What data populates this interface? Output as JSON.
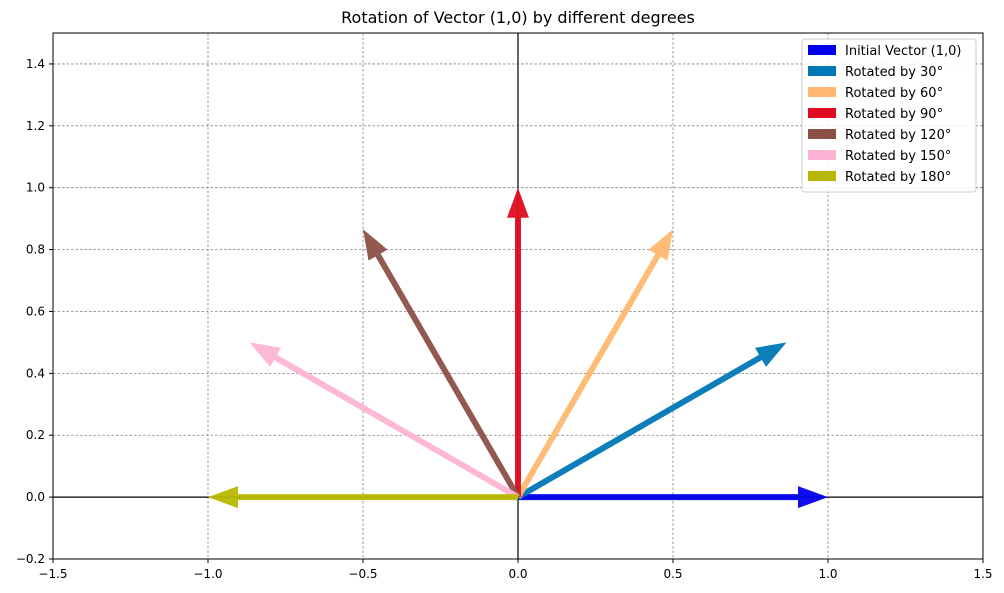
{
  "chart_data": {
    "type": "quiver",
    "title": "Rotation of Vector (1,0) by different degrees",
    "xlabel": "",
    "ylabel": "",
    "xlim": [
      -1.5,
      1.5
    ],
    "ylim": [
      -0.2,
      1.5
    ],
    "x_ticks": [
      "−1.5",
      "−1.0",
      "−0.5",
      "0.0",
      "0.5",
      "1.0",
      "1.5"
    ],
    "x_tick_values": [
      -1.5,
      -1.0,
      -0.5,
      0.0,
      0.5,
      1.0,
      1.5
    ],
    "y_ticks": [
      "−0.2",
      "0.0",
      "0.2",
      "0.4",
      "0.6",
      "0.8",
      "1.0",
      "1.2",
      "1.4"
    ],
    "y_tick_values": [
      -0.2,
      0.0,
      0.2,
      0.4,
      0.6,
      0.8,
      1.0,
      1.2,
      1.4
    ],
    "grid": true,
    "legend_position": "top-right",
    "vectors": [
      {
        "name": "Initial Vector (1,0)",
        "x0": 0,
        "y0": 0,
        "x1": 1.0,
        "y1": 0.0,
        "color": "#0000ee"
      },
      {
        "name": "Rotated by 30°",
        "x0": 0,
        "y0": 0,
        "x1": 0.866,
        "y1": 0.5,
        "color": "#0077b6"
      },
      {
        "name": "Rotated by 60°",
        "x0": 0,
        "y0": 0,
        "x1": 0.5,
        "y1": 0.866,
        "color": "#ffb870"
      },
      {
        "name": "Rotated by 90°",
        "x0": 0,
        "y0": 0,
        "x1": 0.0,
        "y1": 1.0,
        "color": "#e00b20"
      },
      {
        "name": "Rotated by 120°",
        "x0": 0,
        "y0": 0,
        "x1": -0.5,
        "y1": 0.866,
        "color": "#8c5045"
      },
      {
        "name": "Rotated by 150°",
        "x0": 0,
        "y0": 0,
        "x1": -0.866,
        "y1": 0.5,
        "color": "#fdb4d4"
      },
      {
        "name": "Rotated by 180°",
        "x0": 0,
        "y0": 0,
        "x1": -1.0,
        "y1": 0.0,
        "color": "#b9b800"
      }
    ]
  }
}
